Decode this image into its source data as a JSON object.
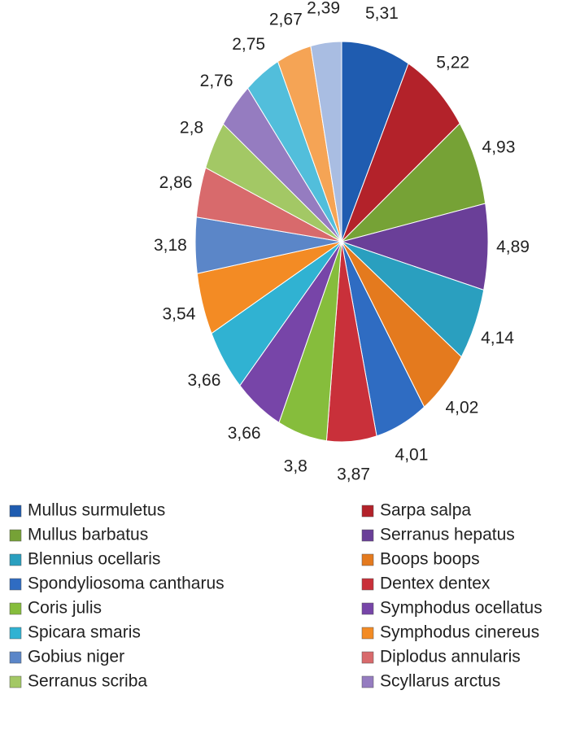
{
  "chart_data": {
    "type": "pie",
    "categories": [
      "Mullus surmuletus",
      "Sarpa salpa",
      "Mullus barbatus",
      "Serranus hepatus",
      "Blennius ocellaris",
      "Boops boops",
      "Spondyliosoma cantharus",
      "Dentex dentex",
      "Coris julis",
      "Symphodus ocellatus",
      "Spicara smaris",
      "Symphodus cinereus",
      "Gobius niger",
      "Diplodus annularis",
      "Serranus scriba",
      "Scyllarus arctus",
      null,
      null,
      null
    ],
    "values": [
      5.31,
      5.22,
      4.93,
      4.89,
      4.14,
      4.02,
      4.01,
      3.87,
      3.8,
      3.66,
      3.66,
      3.54,
      3.18,
      2.86,
      2.8,
      2.76,
      2.75,
      2.67,
      2.39
    ],
    "value_labels": [
      "5,31",
      "5,22",
      "4,93",
      "4,89",
      "4,14",
      "4,02",
      "4,01",
      "3,87",
      "3,8",
      "3,66",
      "3,66",
      "3,54",
      "3,18",
      "2,86",
      "2,8",
      "2,76",
      "2,75",
      "2,67",
      "2,39"
    ],
    "colors": [
      "#1f5cb0",
      "#b3222a",
      "#76a236",
      "#6a3f98",
      "#2a9fbf",
      "#e47a1e",
      "#2f6cc2",
      "#c9303a",
      "#86bd3c",
      "#7745a8",
      "#30b2d2",
      "#f38b24",
      "#5b86c8",
      "#d86a6c",
      "#a3c865",
      "#957cc0",
      "#52bedb",
      "#f5a455",
      "#a9bde2"
    ],
    "legend": "bottom"
  }
}
